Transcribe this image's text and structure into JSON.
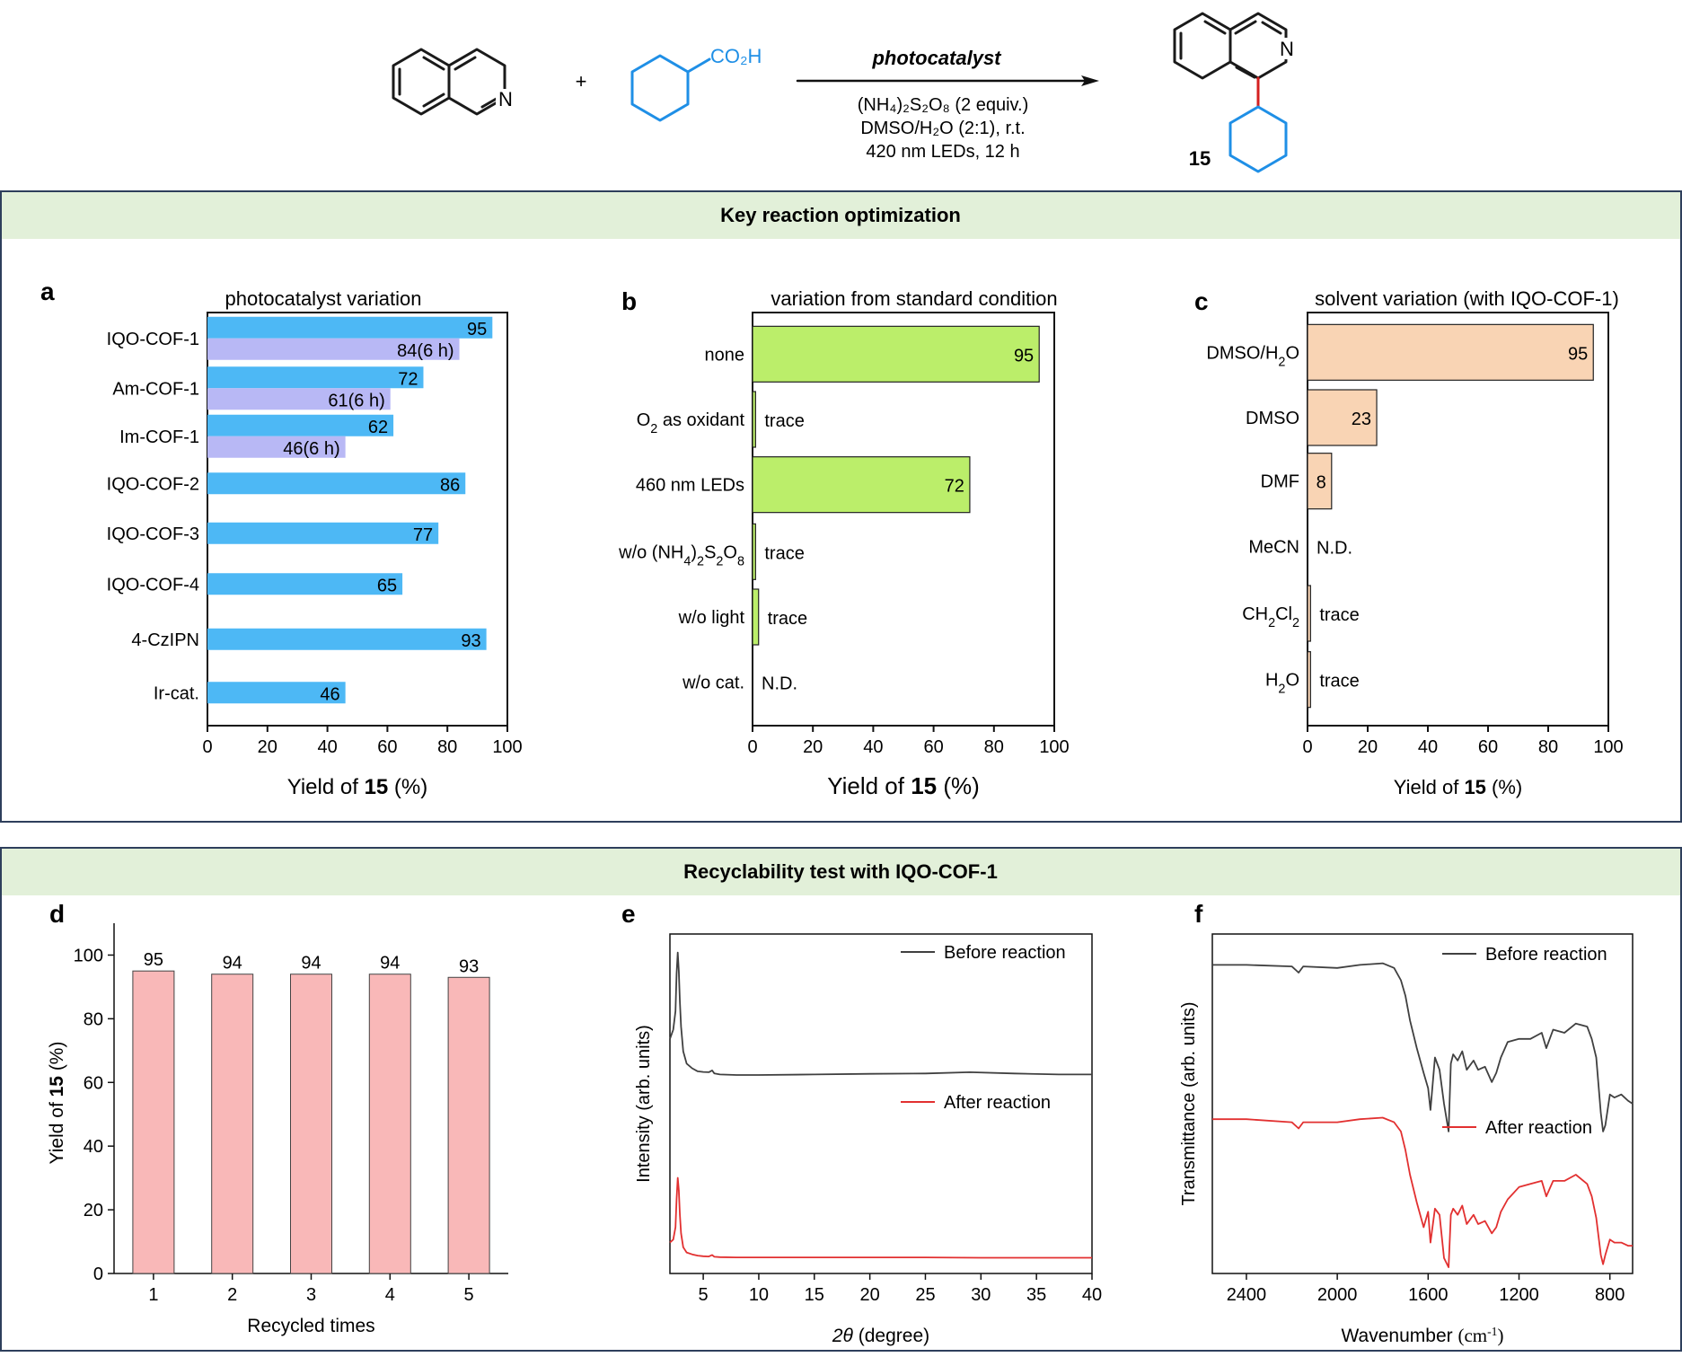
{
  "scheme": {
    "reactant1_atom": "N",
    "reactant2_group": "CO2H",
    "reactant2_group_display": "CO₂H",
    "plus": "+",
    "arrow_top": "photocatalyst",
    "cond1": "(NH4)2S2O8 (2 equiv.)",
    "cond1_display": "(NH₄)₂S₂O₈ (2 equiv.)",
    "cond2": "DMSO/H2O (2:1), r.t.",
    "cond2_display": "DMSO/H₂O (2:1), r.t.",
    "cond3": "420 nm LEDs, 12 h",
    "product_atom": "N",
    "product_label": "15",
    "colors": {
      "bond": "#1a1a1a",
      "cyclohexyl": "#1f8fe6",
      "new_bond": "#d42020"
    }
  },
  "section1": {
    "title": "Key reaction optimization"
  },
  "section2": {
    "title": "Recyclability test with IQO-COF-1"
  },
  "colors": {
    "header_bg": "#e2f0d9",
    "panel_border": "#2e3f5c",
    "bar_blue": "#4db8f5",
    "bar_lilac": "#b8b8f5",
    "bar_green": "#bbee6a",
    "bar_peach": "#f9d4b4",
    "bar_pink": "#f9b8b8",
    "line_before": "#404040",
    "line_after": "#e23030"
  },
  "chart_data": [
    {
      "id": "a",
      "panel_label": "a",
      "type": "bar",
      "orientation": "horizontal",
      "title": "photocatalyst variation",
      "xlabel": "Yield of 15 (%)",
      "xlabel_pre": "Yield of ",
      "xlabel_bold": "15",
      "xlabel_post": " (%)",
      "xlim": [
        0,
        100
      ],
      "xticks": [
        0,
        20,
        40,
        60,
        80,
        100
      ],
      "categories": [
        "IQO-COF-1",
        "Am-COF-1",
        "Im-COF-1",
        "IQO-COF-2",
        "IQO-COF-3",
        "IQO-COF-4",
        "4-CzIPN",
        "Ir-cat."
      ],
      "series": [
        {
          "name": "12 h",
          "values": [
            95,
            72,
            62,
            86,
            77,
            65,
            93,
            46
          ],
          "labels": [
            "95",
            "72",
            "62",
            "86",
            "77",
            "65",
            "93",
            "46"
          ]
        },
        {
          "name": "6 h",
          "values": [
            84,
            61,
            46,
            null,
            null,
            null,
            null,
            null
          ],
          "labels": [
            "84(6 h)",
            "61(6 h)",
            "46(6 h)",
            null,
            null,
            null,
            null,
            null
          ]
        }
      ]
    },
    {
      "id": "b",
      "panel_label": "b",
      "type": "bar",
      "orientation": "horizontal",
      "title": "variation from standard condition",
      "xlabel": "Yield of 15 (%)",
      "xlabel_pre": "Yield of ",
      "xlabel_bold": "15",
      "xlabel_post": " (%)",
      "xlim": [
        0,
        100
      ],
      "xticks": [
        0,
        20,
        40,
        60,
        80,
        100
      ],
      "categories": [
        "none",
        "O2 as oxidant",
        "460 nm LEDs",
        "w/o (NH4)2S2O8",
        "w/o light",
        "w/o cat."
      ],
      "categories_display": [
        "none",
        "O₂ as oxidant",
        "460 nm LEDs",
        "w/o (NH₄)₂S₂O₈",
        "w/o light",
        "w/o cat."
      ],
      "values": [
        95,
        1,
        72,
        1,
        2,
        0
      ],
      "value_labels": [
        "95",
        "trace",
        "72",
        "trace",
        "trace",
        "N.D."
      ]
    },
    {
      "id": "c",
      "panel_label": "c",
      "type": "bar",
      "orientation": "horizontal",
      "title": "solvent variation (with IQO-COF-1)",
      "xlabel": "Yield of 15 (%)",
      "xlabel_pre": "Yield of ",
      "xlabel_bold": "15",
      "xlabel_post": " (%)",
      "xlim": [
        0,
        100
      ],
      "xticks": [
        0,
        20,
        40,
        60,
        80,
        100
      ],
      "categories": [
        "DMSO/H2O",
        "DMSO",
        "DMF",
        "MeCN",
        "CH2Cl2",
        "H2O"
      ],
      "categories_display": [
        "DMSO/H₂O",
        "DMSO",
        "DMF",
        "MeCN",
        "CH₂Cl₂",
        "H₂O"
      ],
      "values": [
        95,
        23,
        8,
        0,
        1,
        1
      ],
      "value_labels": [
        "95",
        "23",
        "8",
        "N.D.",
        "trace",
        "trace"
      ]
    },
    {
      "id": "d",
      "panel_label": "d",
      "type": "bar",
      "orientation": "vertical",
      "xlabel": "Recycled times",
      "ylabel": "Yield of 15 (%)",
      "ylabel_pre": "Yield of ",
      "ylabel_bold": "15",
      "ylabel_post": " (%)",
      "ylim": [
        0,
        110
      ],
      "yticks": [
        0,
        20,
        40,
        60,
        80,
        100
      ],
      "categories": [
        "1",
        "2",
        "3",
        "4",
        "5"
      ],
      "values": [
        95,
        94,
        94,
        94,
        93
      ]
    },
    {
      "id": "e",
      "panel_label": "e",
      "type": "line",
      "xlabel": "2θ (degree)",
      "xlabel_var": "2θ",
      "xlabel_post": " (degree)",
      "ylabel": "Intensity (arb. units)",
      "xlim": [
        2,
        40
      ],
      "xticks": [
        5,
        10,
        15,
        20,
        25,
        30,
        35,
        40
      ],
      "ylim": [
        0,
        1.1
      ],
      "series": [
        {
          "name": "Before reaction",
          "x": [
            2.0,
            2.3,
            2.5,
            2.6,
            2.7,
            2.8,
            2.9,
            3.0,
            3.2,
            3.5,
            4.0,
            4.5,
            5.0,
            5.5,
            5.8,
            6.0,
            6.5,
            8,
            10,
            15,
            20,
            25,
            29,
            33,
            37,
            40
          ],
          "y": [
            0.76,
            0.79,
            0.85,
            0.97,
            1.04,
            0.98,
            0.88,
            0.8,
            0.72,
            0.68,
            0.665,
            0.655,
            0.653,
            0.652,
            0.658,
            0.648,
            0.645,
            0.643,
            0.643,
            0.645,
            0.647,
            0.648,
            0.652,
            0.648,
            0.645,
            0.645
          ]
        },
        {
          "name": "After reaction",
          "x": [
            2.0,
            2.3,
            2.5,
            2.6,
            2.7,
            2.8,
            2.9,
            3.0,
            3.2,
            3.5,
            4.0,
            4.5,
            5.0,
            5.5,
            5.8,
            6.0,
            6.5,
            8,
            10,
            15,
            20,
            25,
            30,
            35,
            40
          ],
          "y": [
            0.1,
            0.11,
            0.15,
            0.24,
            0.31,
            0.27,
            0.19,
            0.13,
            0.085,
            0.068,
            0.062,
            0.058,
            0.056,
            0.055,
            0.06,
            0.054,
            0.053,
            0.052,
            0.052,
            0.052,
            0.052,
            0.052,
            0.051,
            0.051,
            0.051
          ]
        }
      ]
    },
    {
      "id": "f",
      "panel_label": "f",
      "type": "line",
      "xlabel": "Wavenumber (cm-1)",
      "xlabel_pre": "Wavenumber ",
      "xlabel_unit": "cm",
      "xlabel_exp": "-1",
      "ylabel": "Transmittance (arb. units)",
      "xlim": [
        2550,
        700
      ],
      "xticks": [
        2400,
        2000,
        1600,
        1200,
        800
      ],
      "ylim": [
        0,
        1.1
      ],
      "series": [
        {
          "name": "Before reaction",
          "x": [
            2550,
            2400,
            2200,
            2170,
            2150,
            2000,
            1900,
            1800,
            1750,
            1720,
            1700,
            1680,
            1650,
            1620,
            1600,
            1590,
            1570,
            1550,
            1530,
            1510,
            1500,
            1490,
            1470,
            1450,
            1430,
            1400,
            1380,
            1350,
            1320,
            1300,
            1280,
            1250,
            1200,
            1150,
            1100,
            1080,
            1050,
            1000,
            950,
            900,
            880,
            860,
            840,
            830,
            820,
            800,
            780,
            750,
            720,
            700
          ],
          "y": [
            1.0,
            1.0,
            0.995,
            0.975,
            0.995,
            0.99,
            1.0,
            1.005,
            0.99,
            0.95,
            0.9,
            0.82,
            0.73,
            0.65,
            0.6,
            0.53,
            0.7,
            0.66,
            0.55,
            0.46,
            0.68,
            0.71,
            0.69,
            0.72,
            0.66,
            0.69,
            0.66,
            0.67,
            0.62,
            0.65,
            0.7,
            0.75,
            0.76,
            0.76,
            0.78,
            0.73,
            0.79,
            0.78,
            0.81,
            0.8,
            0.76,
            0.7,
            0.52,
            0.46,
            0.48,
            0.58,
            0.57,
            0.58,
            0.56,
            0.55
          ]
        },
        {
          "name": "After reaction",
          "x": [
            2550,
            2400,
            2200,
            2170,
            2150,
            2000,
            1900,
            1800,
            1750,
            1720,
            1700,
            1680,
            1650,
            1620,
            1600,
            1590,
            1570,
            1550,
            1530,
            1510,
            1500,
            1490,
            1470,
            1450,
            1430,
            1400,
            1380,
            1350,
            1320,
            1300,
            1280,
            1250,
            1200,
            1150,
            1100,
            1080,
            1050,
            1000,
            950,
            900,
            880,
            860,
            840,
            830,
            820,
            800,
            780,
            750,
            720,
            700
          ],
          "y": [
            0.5,
            0.5,
            0.49,
            0.47,
            0.49,
            0.49,
            0.5,
            0.505,
            0.49,
            0.46,
            0.4,
            0.32,
            0.23,
            0.15,
            0.2,
            0.1,
            0.21,
            0.19,
            0.05,
            0.02,
            0.19,
            0.21,
            0.19,
            0.22,
            0.16,
            0.19,
            0.16,
            0.17,
            0.13,
            0.15,
            0.2,
            0.24,
            0.28,
            0.29,
            0.3,
            0.25,
            0.3,
            0.3,
            0.32,
            0.29,
            0.25,
            0.18,
            0.06,
            0.03,
            0.06,
            0.11,
            0.1,
            0.1,
            0.09,
            0.09
          ]
        }
      ]
    }
  ]
}
